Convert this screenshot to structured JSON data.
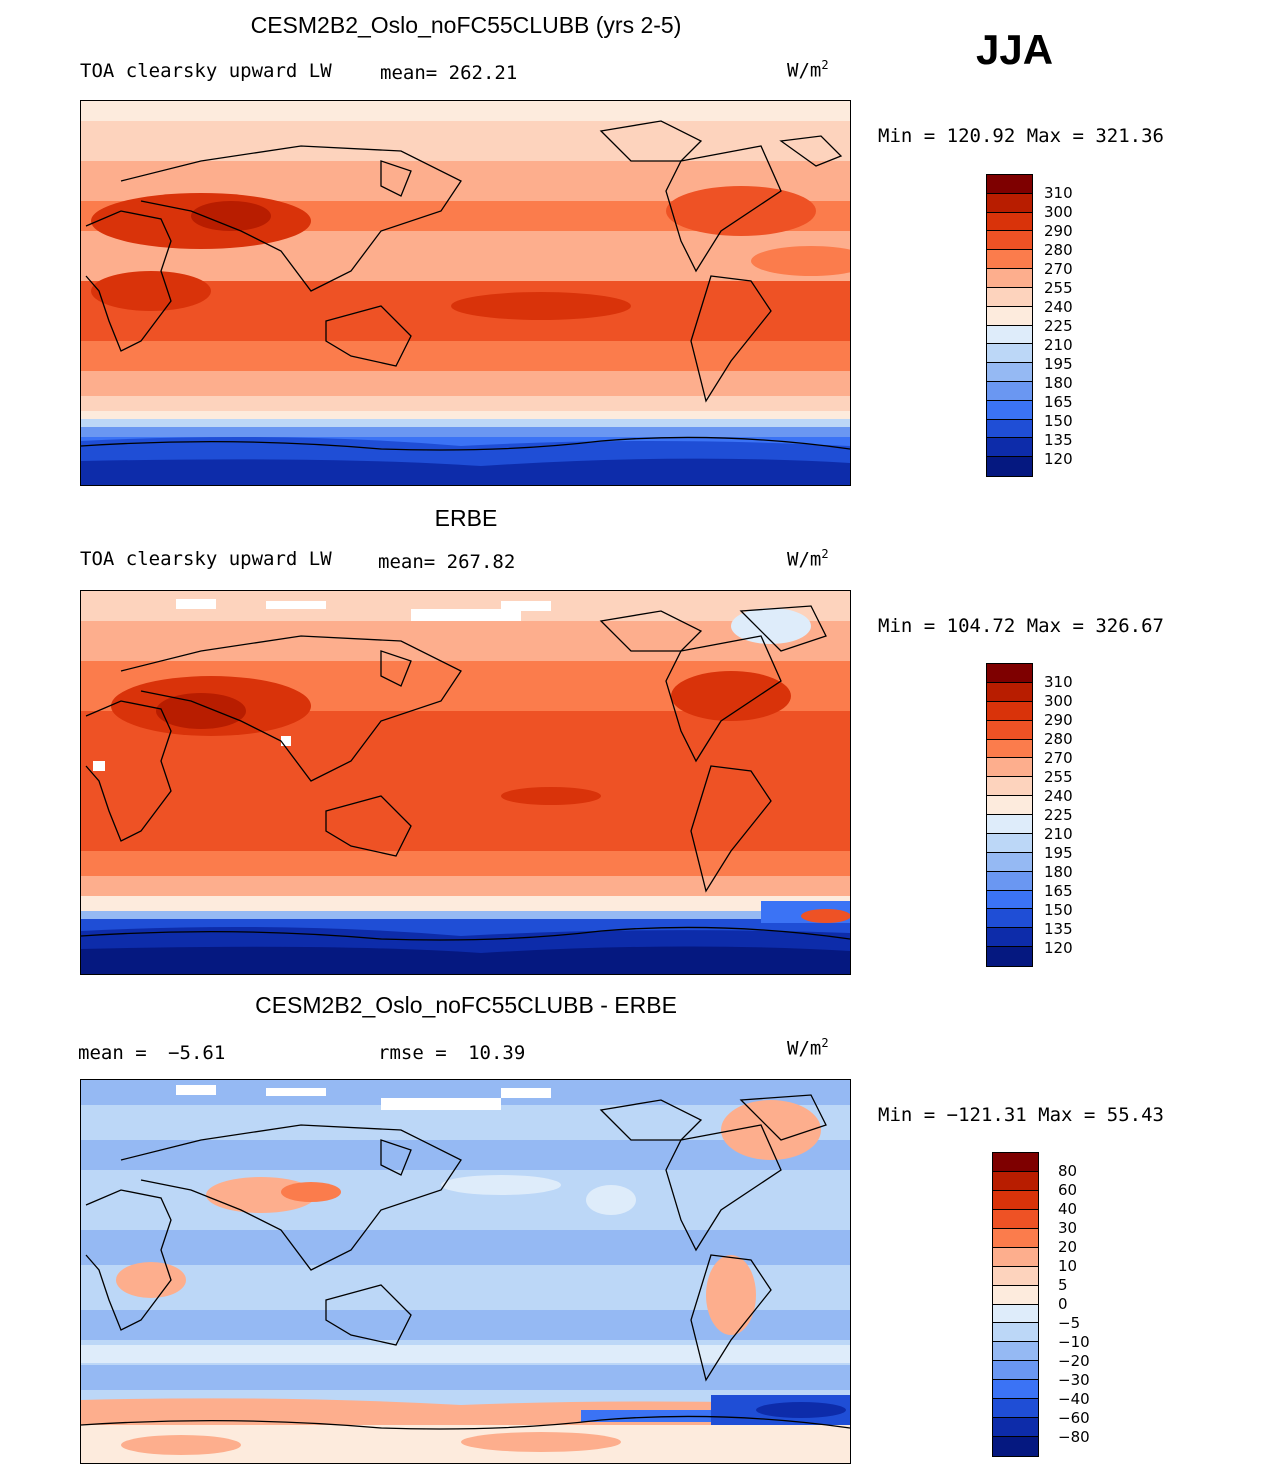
{
  "season": "JJA",
  "units_base": "W/m",
  "units_exp": "2",
  "panels": [
    {
      "title": "CESM2B2_Oslo_noFC55CLUBB (yrs 2-5)",
      "variable": "TOA clearsky upward LW",
      "stat1_label": "mean=",
      "stat1_value": "262.21",
      "minmax": "Min = 120.92 Max = 321.36",
      "ticks": [
        "310",
        "300",
        "290",
        "280",
        "270",
        "255",
        "240",
        "225",
        "210",
        "195",
        "180",
        "165",
        "150",
        "135",
        "120"
      ],
      "colors": [
        "#7e0000",
        "#b81d00",
        "#d9330a",
        "#ee5225",
        "#fb7c4c",
        "#fdae8d",
        "#fdd3bd",
        "#fdebdd",
        "#deecfa",
        "#bcd7f7",
        "#95b9f3",
        "#6a97f2",
        "#3b73f5",
        "#1f4ed6",
        "#0d2caa",
        "#051880"
      ]
    },
    {
      "title": "ERBE",
      "variable": "TOA clearsky upward LW",
      "stat1_label": "mean=",
      "stat1_value": "267.82",
      "minmax": "Min = 104.72 Max = 326.67",
      "ticks": [
        "310",
        "300",
        "290",
        "280",
        "270",
        "255",
        "240",
        "225",
        "210",
        "195",
        "180",
        "165",
        "150",
        "135",
        "120"
      ],
      "colors": [
        "#7e0000",
        "#b81d00",
        "#d9330a",
        "#ee5225",
        "#fb7c4c",
        "#fdae8d",
        "#fdd3bd",
        "#fdebdd",
        "#deecfa",
        "#bcd7f7",
        "#95b9f3",
        "#6a97f2",
        "#3b73f5",
        "#1f4ed6",
        "#0d2caa",
        "#051880"
      ]
    },
    {
      "title": "CESM2B2_Oslo_noFC55CLUBB - ERBE",
      "stat1_label": "mean =",
      "stat1_value": "−5.61",
      "stat2_label": "rmse =",
      "stat2_value": "10.39",
      "minmax": "Min = −121.31 Max =  55.43",
      "ticks": [
        "80",
        "60",
        "40",
        "30",
        "20",
        "10",
        "5",
        "0",
        "−5",
        "−10",
        "−20",
        "−30",
        "−40",
        "−60",
        "−80"
      ],
      "colors": [
        "#7e0000",
        "#b81d00",
        "#d9330a",
        "#ee5225",
        "#fb7c4c",
        "#fdae8d",
        "#fdd3bd",
        "#fdebdd",
        "#deecfa",
        "#bcd7f7",
        "#95b9f3",
        "#6a97f2",
        "#3b73f5",
        "#1f4ed6",
        "#0d2caa",
        "#051880"
      ]
    }
  ]
}
